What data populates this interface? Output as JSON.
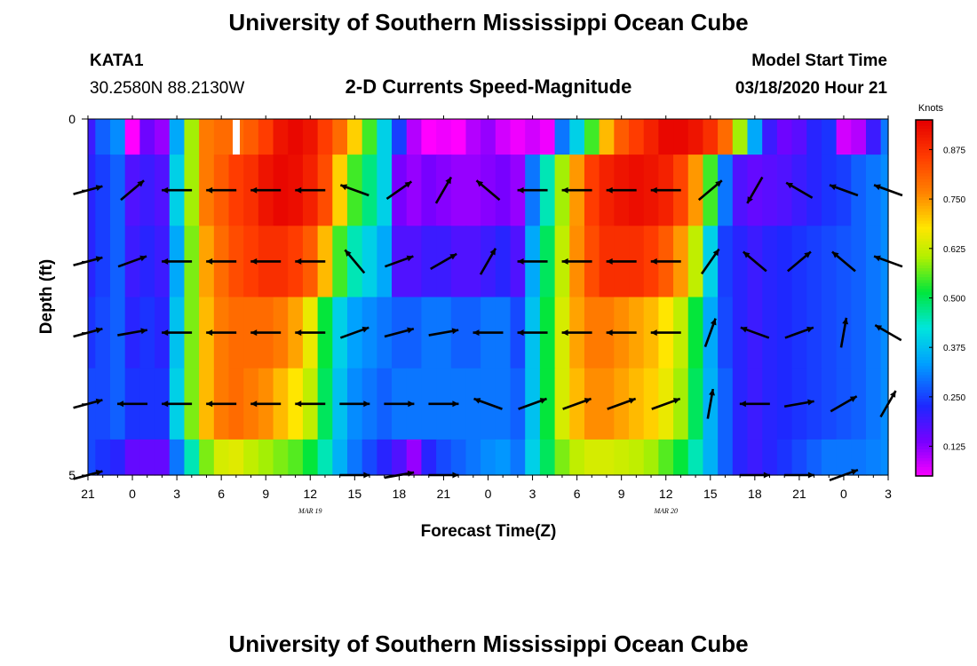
{
  "page": {
    "title": "University of Southern Mississippi Ocean Cube",
    "footer_title": "University of Southern Mississippi Ocean Cube"
  },
  "header": {
    "station": "KATA1",
    "coords": "30.2580N 88.2130W",
    "plot_title": "2-D Currents Speed-Magnitude",
    "model_label": "Model Start Time",
    "model_time": "03/18/2020 Hour 21"
  },
  "chart_data": {
    "type": "heatmap",
    "title": "2-D Currents Speed-Magnitude",
    "xlabel": "Forecast Time(Z)",
    "ylabel": "Depth (ft)",
    "x_hours": [
      0,
      1,
      2,
      3,
      4,
      5,
      6,
      7,
      8,
      9,
      10,
      11,
      12,
      13,
      14,
      15,
      16,
      17,
      18,
      19,
      20,
      21,
      22,
      23,
      24,
      25,
      26,
      27,
      28,
      29,
      30,
      31,
      32,
      33,
      34,
      35,
      36,
      37,
      38,
      39,
      40,
      41,
      42,
      43,
      44,
      45,
      46,
      47,
      48,
      49,
      50,
      51,
      52,
      53,
      54
    ],
    "x_range": [
      0,
      54
    ],
    "x_tick_labels": [
      "21",
      "0",
      "3",
      "6",
      "9",
      "12",
      "15",
      "18",
      "21",
      "0",
      "3",
      "6",
      "9",
      "12",
      "15",
      "18",
      "21",
      "0",
      "3"
    ],
    "x_tick_hours": [
      0,
      3,
      6,
      9,
      12,
      15,
      18,
      21,
      24,
      27,
      30,
      33,
      36,
      39,
      42,
      45,
      48,
      51,
      54
    ],
    "date_labels": [
      {
        "text": "MAR 19",
        "hour": 15
      },
      {
        "text": "MAR 20",
        "hour": 39
      }
    ],
    "y_range": [
      0,
      5
    ],
    "y_tick_labels": [
      "0",
      "5"
    ],
    "layers": [
      0.25,
      1.0,
      2.0,
      3.0,
      4.0,
      4.75
    ],
    "layer_bounds": [
      [
        0,
        0.5
      ],
      [
        0.5,
        1.5
      ],
      [
        1.5,
        2.5
      ],
      [
        2.5,
        3.5
      ],
      [
        3.5,
        4.5
      ],
      [
        4.5,
        5.0
      ]
    ],
    "speed": [
      [
        0.2,
        0.28,
        0.32,
        0.05,
        0.15,
        0.12,
        0.35,
        0.6,
        0.78,
        0.8,
        0.8,
        0.82,
        0.86,
        0.92,
        0.94,
        0.92,
        0.86,
        0.8,
        0.7,
        0.55,
        0.4,
        0.25,
        0.1,
        0.05,
        0.06,
        0.04,
        0.1,
        0.12,
        0.08,
        0.06,
        0.08,
        0.06,
        0.3,
        0.4,
        0.55,
        0.72,
        0.82,
        0.86,
        0.9,
        0.94,
        0.94,
        0.92,
        0.88,
        0.8,
        0.6,
        0.35,
        0.2,
        0.15,
        0.17,
        0.22,
        0.24,
        0.08,
        0.1,
        0.2,
        0.3
      ],
      [
        0.22,
        0.25,
        0.28,
        0.18,
        0.2,
        0.18,
        0.4,
        0.6,
        0.78,
        0.82,
        0.86,
        0.88,
        0.92,
        0.94,
        0.93,
        0.9,
        0.84,
        0.7,
        0.55,
        0.48,
        0.4,
        0.14,
        0.12,
        0.14,
        0.13,
        0.12,
        0.12,
        0.13,
        0.14,
        0.12,
        0.3,
        0.45,
        0.6,
        0.75,
        0.86,
        0.9,
        0.92,
        0.93,
        0.92,
        0.9,
        0.85,
        0.75,
        0.55,
        0.3,
        0.18,
        0.16,
        0.17,
        0.18,
        0.2,
        0.22,
        0.24,
        0.25,
        0.28,
        0.3,
        0.32
      ],
      [
        0.22,
        0.25,
        0.28,
        0.2,
        0.22,
        0.2,
        0.35,
        0.58,
        0.74,
        0.8,
        0.84,
        0.86,
        0.88,
        0.88,
        0.86,
        0.82,
        0.72,
        0.55,
        0.45,
        0.4,
        0.35,
        0.18,
        0.18,
        0.2,
        0.2,
        0.18,
        0.18,
        0.2,
        0.22,
        0.18,
        0.35,
        0.5,
        0.62,
        0.76,
        0.84,
        0.88,
        0.88,
        0.88,
        0.86,
        0.82,
        0.75,
        0.62,
        0.4,
        0.25,
        0.22,
        0.2,
        0.22,
        0.23,
        0.24,
        0.25,
        0.26,
        0.27,
        0.28,
        0.3,
        0.32
      ],
      [
        0.24,
        0.26,
        0.28,
        0.22,
        0.24,
        0.22,
        0.38,
        0.58,
        0.72,
        0.78,
        0.8,
        0.8,
        0.8,
        0.78,
        0.74,
        0.66,
        0.52,
        0.4,
        0.34,
        0.32,
        0.3,
        0.28,
        0.28,
        0.3,
        0.3,
        0.28,
        0.28,
        0.3,
        0.3,
        0.26,
        0.38,
        0.52,
        0.64,
        0.74,
        0.78,
        0.78,
        0.76,
        0.74,
        0.72,
        0.68,
        0.62,
        0.52,
        0.35,
        0.26,
        0.22,
        0.2,
        0.22,
        0.23,
        0.24,
        0.25,
        0.26,
        0.27,
        0.28,
        0.3,
        0.32
      ],
      [
        0.26,
        0.26,
        0.28,
        0.24,
        0.24,
        0.24,
        0.4,
        0.58,
        0.72,
        0.78,
        0.8,
        0.78,
        0.76,
        0.72,
        0.68,
        0.62,
        0.5,
        0.38,
        0.32,
        0.3,
        0.28,
        0.3,
        0.3,
        0.3,
        0.3,
        0.3,
        0.3,
        0.3,
        0.3,
        0.28,
        0.38,
        0.52,
        0.64,
        0.72,
        0.76,
        0.76,
        0.74,
        0.72,
        0.7,
        0.66,
        0.6,
        0.5,
        0.36,
        0.28,
        0.22,
        0.2,
        0.22,
        0.23,
        0.24,
        0.25,
        0.26,
        0.27,
        0.28,
        0.3,
        0.32
      ],
      [
        0.26,
        0.24,
        0.22,
        0.16,
        0.16,
        0.16,
        0.3,
        0.45,
        0.58,
        0.64,
        0.65,
        0.62,
        0.6,
        0.58,
        0.56,
        0.52,
        0.45,
        0.36,
        0.3,
        0.26,
        0.22,
        0.18,
        0.12,
        0.22,
        0.26,
        0.28,
        0.3,
        0.32,
        0.33,
        0.3,
        0.4,
        0.5,
        0.58,
        0.62,
        0.64,
        0.64,
        0.63,
        0.62,
        0.6,
        0.56,
        0.52,
        0.45,
        0.36,
        0.28,
        0.22,
        0.2,
        0.22,
        0.24,
        0.26,
        0.28,
        0.3,
        0.3,
        0.3,
        0.31,
        0.32
      ]
    ],
    "vector_hours": [
      0,
      3,
      6,
      9,
      12,
      15,
      18,
      21,
      24,
      27,
      30,
      33,
      36,
      39,
      42,
      45,
      48,
      51,
      54
    ],
    "vector_depths": [
      0.0,
      1.0,
      2.0,
      3.0,
      4.0,
      5.0
    ],
    "vectors_deg": [
      [
        null,
        null,
        null,
        null,
        null,
        null,
        null,
        null,
        null,
        null,
        null,
        null,
        null,
        null,
        null,
        null,
        null,
        null,
        null
      ],
      [
        15,
        40,
        180,
        180,
        180,
        180,
        160,
        35,
        60,
        140,
        180,
        180,
        180,
        180,
        40,
        240,
        150,
        160,
        160
      ],
      [
        15,
        20,
        180,
        180,
        180,
        180,
        130,
        20,
        30,
        60,
        180,
        180,
        180,
        180,
        55,
        140,
        40,
        140,
        160
      ],
      [
        15,
        10,
        180,
        180,
        180,
        180,
        20,
        15,
        10,
        180,
        180,
        180,
        180,
        180,
        70,
        160,
        20,
        80,
        150
      ],
      [
        15,
        180,
        180,
        180,
        180,
        180,
        0,
        0,
        0,
        160,
        20,
        20,
        20,
        20,
        80,
        180,
        10,
        30,
        60
      ],
      [
        15,
        null,
        null,
        null,
        null,
        null,
        0,
        10,
        0,
        null,
        null,
        null,
        null,
        null,
        null,
        0,
        0,
        20,
        null
      ]
    ],
    "colorbar": {
      "unit": "Knots",
      "min": 0.05,
      "max": 0.95,
      "tick_values": [
        0.125,
        0.25,
        0.375,
        0.5,
        0.625,
        0.75,
        0.875
      ],
      "tick_labels": [
        "0.125",
        "0.250",
        "0.375",
        "0.500",
        "0.625",
        "0.750",
        "0.875"
      ]
    }
  },
  "colors": {
    "background": "#ffffff",
    "text": "#000000",
    "arrow": "#000000"
  }
}
